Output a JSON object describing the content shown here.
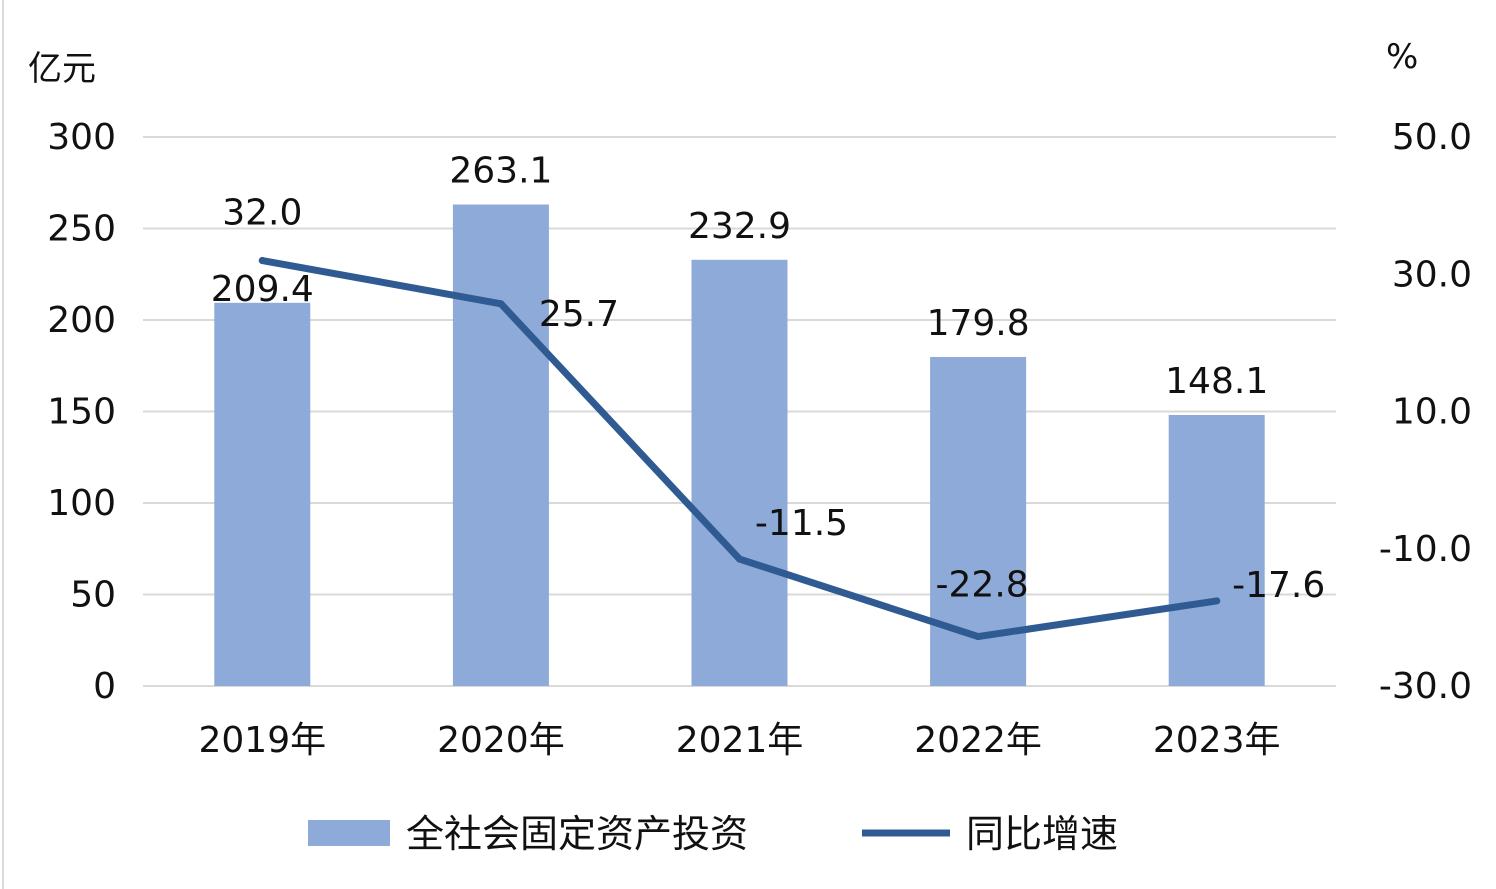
{
  "chart_data": {
    "type": "bar",
    "categories": [
      "2019年",
      "2020年",
      "2021年",
      "2022年",
      "2023年"
    ],
    "y_left": {
      "unit_label": "亿元",
      "ylim": [
        0,
        300
      ],
      "ticks": [
        "0",
        "50",
        "100",
        "150",
        "200",
        "250",
        "300"
      ]
    },
    "y_right": {
      "unit_label": "%",
      "ylim": [
        -30,
        50
      ],
      "ticks": [
        "-30.0",
        "-10.0",
        "10.0",
        "30.0",
        "50.0"
      ]
    },
    "series": [
      {
        "name": "全社会固定资产投资",
        "type": "bar",
        "axis": "left",
        "color": "#8eaad8",
        "values": [
          209.4,
          263.1,
          232.9,
          179.8,
          148.1
        ],
        "labels": [
          "209.4",
          "263.1",
          "232.9",
          "179.8",
          "148.1"
        ]
      },
      {
        "name": "同比增速",
        "type": "line",
        "axis": "right",
        "color": "#2f5b92",
        "values": [
          32.0,
          25.7,
          -11.5,
          -22.8,
          -17.6
        ],
        "labels": [
          "32.0",
          "25.7",
          "-11.5",
          "-22.8",
          "-17.6"
        ]
      }
    ],
    "grid": true,
    "legend_position": "bottom"
  }
}
